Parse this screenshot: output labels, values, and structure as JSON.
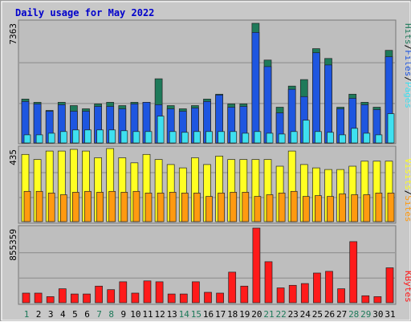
{
  "title": "Daily usage for May 2022",
  "colors": {
    "background": "#c8c8c8",
    "plot_background": "#bebebe",
    "title": "#0000cc",
    "hits": "#1e7a5a",
    "files": "#1e56e0",
    "pages": "#3ee0f0",
    "visits": "#ffff22",
    "sites": "#ff9a10",
    "kbytes": "#ff1a1a",
    "weekend_label": "#1e7a5a",
    "weekday_label": "#000000"
  },
  "chart_data": [
    {
      "type": "bar",
      "panel": "hits-files-pages",
      "title": "Daily usage for May 2022",
      "ymax_label": "7363",
      "ylim": [
        0,
        7363
      ],
      "categories": [
        "1",
        "2",
        "3",
        "4",
        "5",
        "6",
        "7",
        "8",
        "9",
        "10",
        "11",
        "12",
        "13",
        "14",
        "15",
        "16",
        "17",
        "18",
        "19",
        "20",
        "21",
        "22",
        "23",
        "24",
        "25",
        "26",
        "27",
        "28",
        "29",
        "30",
        "31"
      ],
      "legend": [
        "Pages",
        "/",
        "Files",
        "/",
        "Hits"
      ],
      "series": [
        {
          "name": "Hits",
          "values": [
            2700,
            2500,
            2000,
            2500,
            2300,
            2100,
            2400,
            2500,
            2300,
            2500,
            2500,
            3950,
            2300,
            2100,
            2300,
            2700,
            3000,
            2400,
            2400,
            7363,
            5100,
            2200,
            3500,
            3900,
            5800,
            5200,
            2200,
            3000,
            2500,
            2200,
            5700
          ]
        },
        {
          "name": "Files",
          "values": [
            2550,
            2400,
            1950,
            2350,
            1950,
            1950,
            2250,
            2250,
            2100,
            2400,
            2500,
            2350,
            2100,
            1950,
            2150,
            2550,
            2950,
            2200,
            2250,
            6800,
            4700,
            1850,
            3300,
            2850,
            5550,
            4800,
            2100,
            2750,
            2350,
            2050,
            5300
          ]
        },
        {
          "name": "Pages",
          "values": [
            500,
            500,
            600,
            700,
            800,
            800,
            800,
            800,
            750,
            700,
            700,
            1650,
            700,
            650,
            700,
            700,
            700,
            700,
            600,
            700,
            600,
            550,
            700,
            1400,
            700,
            650,
            500,
            900,
            600,
            500,
            1800
          ]
        }
      ]
    },
    {
      "type": "bar",
      "panel": "visits-sites",
      "ymax_label": "435",
      "ylim": [
        0,
        435
      ],
      "categories": [
        "1",
        "2",
        "3",
        "4",
        "5",
        "6",
        "7",
        "8",
        "9",
        "10",
        "11",
        "12",
        "13",
        "14",
        "15",
        "16",
        "17",
        "18",
        "19",
        "20",
        "21",
        "22",
        "23",
        "24",
        "25",
        "26",
        "27",
        "28",
        "29",
        "30",
        "31"
      ],
      "legend": [
        "Sites",
        "/",
        "Visits"
      ],
      "series": [
        {
          "name": "Visits",
          "values": [
            400,
            370,
            420,
            420,
            430,
            420,
            380,
            435,
            380,
            350,
            400,
            370,
            340,
            320,
            380,
            340,
            390,
            370,
            370,
            370,
            370,
            330,
            420,
            340,
            320,
            310,
            310,
            330,
            360,
            360,
            360
          ]
        },
        {
          "name": "Sites",
          "values": [
            180,
            180,
            170,
            160,
            175,
            180,
            175,
            180,
            175,
            180,
            170,
            170,
            175,
            170,
            170,
            150,
            170,
            175,
            175,
            150,
            160,
            170,
            180,
            150,
            155,
            150,
            165,
            160,
            160,
            170,
            170
          ]
        }
      ]
    },
    {
      "type": "bar",
      "panel": "kbytes",
      "ymax_label": "855359",
      "ylim": [
        0,
        855359
      ],
      "categories": [
        "1",
        "2",
        "3",
        "4",
        "5",
        "6",
        "7",
        "8",
        "9",
        "10",
        "11",
        "12",
        "13",
        "14",
        "15",
        "16",
        "17",
        "18",
        "19",
        "20",
        "21",
        "22",
        "23",
        "24",
        "25",
        "26",
        "27",
        "28",
        "29",
        "30",
        "31"
      ],
      "legend": [
        "KBytes"
      ],
      "series": [
        {
          "name": "KBytes",
          "values": [
            110000,
            110000,
            70000,
            160000,
            100000,
            100000,
            190000,
            150000,
            240000,
            110000,
            250000,
            240000,
            100000,
            100000,
            240000,
            120000,
            110000,
            350000,
            190000,
            855359,
            470000,
            170000,
            200000,
            220000,
            340000,
            360000,
            160000,
            700000,
            80000,
            70000,
            400000
          ]
        }
      ]
    }
  ]
}
